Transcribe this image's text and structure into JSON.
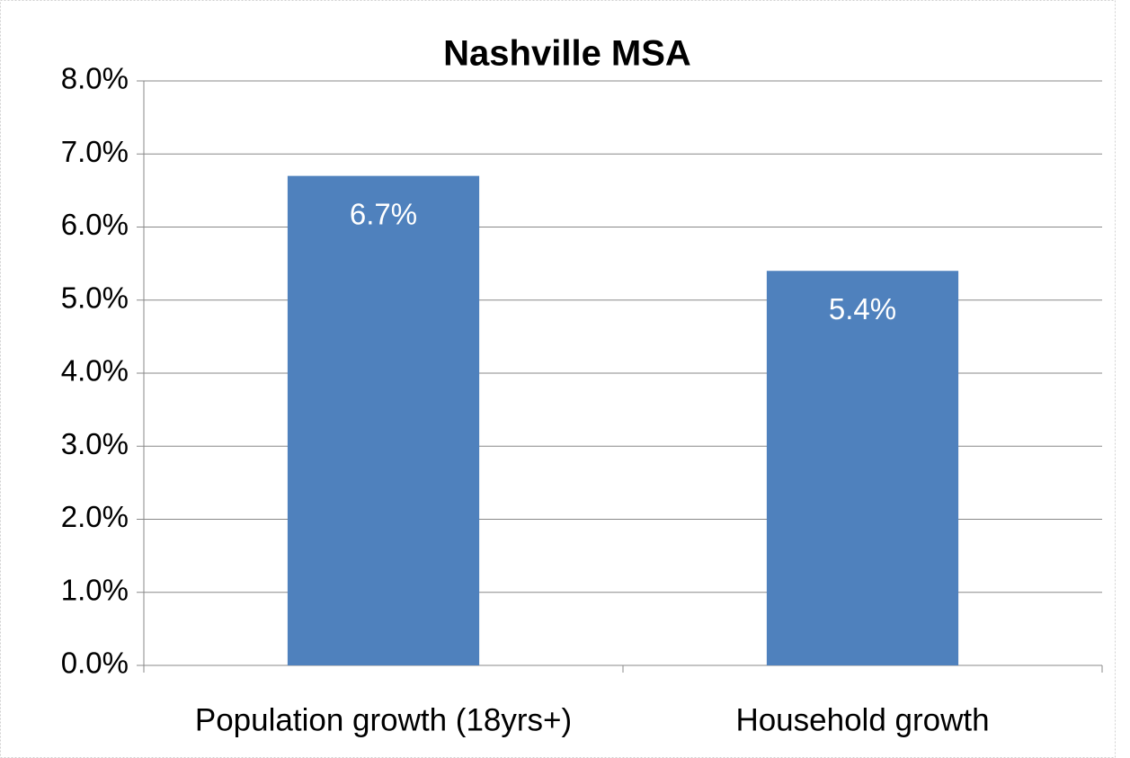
{
  "chart_data": {
    "type": "bar",
    "title": "Nashville MSA",
    "categories": [
      "Population growth (18yrs+)",
      "Household growth"
    ],
    "values": [
      6.7,
      5.4
    ],
    "value_labels": [
      "6.7%",
      "5.4%"
    ],
    "color": "#4f81bd",
    "ylim": [
      0,
      8
    ],
    "yticks": [
      {
        "value": 0,
        "label": "0.0%"
      },
      {
        "value": 1,
        "label": "1.0%"
      },
      {
        "value": 2,
        "label": "2.0%"
      },
      {
        "value": 3,
        "label": "3.0%"
      },
      {
        "value": 4,
        "label": "4.0%"
      },
      {
        "value": 5,
        "label": "5.0%"
      },
      {
        "value": 6,
        "label": "6.0%"
      },
      {
        "value": 7,
        "label": "7.0%"
      },
      {
        "value": 8,
        "label": "8.0%"
      }
    ],
    "grid": true
  }
}
